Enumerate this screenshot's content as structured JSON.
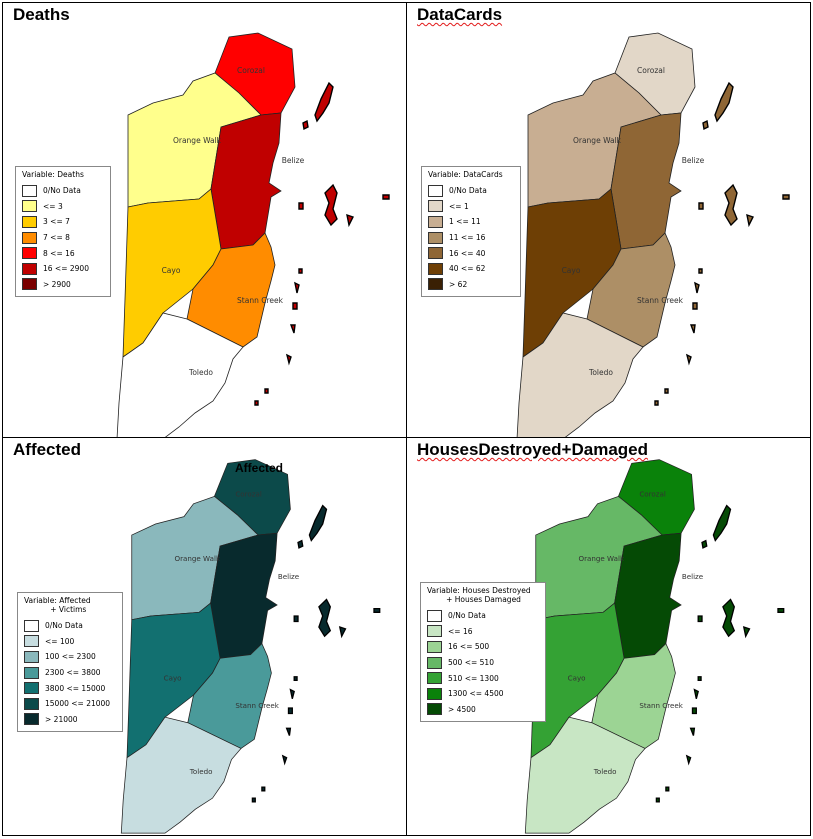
{
  "panels": [
    {
      "title": "Deaths",
      "title_squiggle": false,
      "map_title": "",
      "legend_title": "Variable: Deaths",
      "legend": [
        {
          "label": "0/No Data",
          "color": "#ffffff"
        },
        {
          "label": "<= 3",
          "color": "#ffff8c"
        },
        {
          "label": "3 <= 7",
          "color": "#ffcc00"
        },
        {
          "label": "7 <= 8",
          "color": "#ff8c00"
        },
        {
          "label": "8 <= 16",
          "color": "#ff0000"
        },
        {
          "label": "16 <= 2900",
          "color": "#c00000"
        },
        {
          "label": "> 2900",
          "color": "#7a0000"
        }
      ],
      "district_class": {
        "Corozal": 4,
        "Orange Walk": 1,
        "Belize": 5,
        "Cayo": 2,
        "Stann Creek": 3,
        "Toledo": 0
      }
    },
    {
      "title": "DataCards",
      "title_squiggle": true,
      "map_title": "",
      "legend_title": "Variable: DataCards",
      "legend": [
        {
          "label": "0/No Data",
          "color": "#ffffff"
        },
        {
          "label": "<= 1",
          "color": "#e2d7c8"
        },
        {
          "label": "1 <= 11",
          "color": "#c8ae92"
        },
        {
          "label": "11 <= 16",
          "color": "#ad8f66"
        },
        {
          "label": "16 <= 40",
          "color": "#8f6635"
        },
        {
          "label": "40 <= 62",
          "color": "#6e3f05"
        },
        {
          "label": "> 62",
          "color": "#3a2004"
        }
      ],
      "district_class": {
        "Corozal": 1,
        "Orange Walk": 2,
        "Belize": 4,
        "Cayo": 5,
        "Stann Creek": 3,
        "Toledo": 1
      }
    },
    {
      "title": "Affected",
      "title_squiggle": false,
      "map_title": "Affected",
      "legend_title": "Variable: Affected\n           + Victims",
      "legend": [
        {
          "label": "0/No Data",
          "color": "#ffffff"
        },
        {
          "label": "<= 100",
          "color": "#c7dde0"
        },
        {
          "label": "100 <= 2300",
          "color": "#8ab8bc"
        },
        {
          "label": "2300 <= 3800",
          "color": "#4a9a9a"
        },
        {
          "label": "3800 <= 15000",
          "color": "#127070"
        },
        {
          "label": "15000 <= 21000",
          "color": "#0c4a4a"
        },
        {
          "label": "> 21000",
          "color": "#082a2d"
        }
      ],
      "district_class": {
        "Corozal": 5,
        "Orange Walk": 2,
        "Belize": 6,
        "Cayo": 4,
        "Stann Creek": 3,
        "Toledo": 1
      }
    },
    {
      "title": "HousesDestroyed+Damaged",
      "title_squiggle": true,
      "map_title": "",
      "legend_title": "Variable: Houses Destroyed\n        + Houses Damaged",
      "legend": [
        {
          "label": "0/No Data",
          "color": "#ffffff"
        },
        {
          "label": "<= 16",
          "color": "#c8e6c4"
        },
        {
          "label": "16 <= 500",
          "color": "#9cd494"
        },
        {
          "label": "500 <= 510",
          "color": "#66b866"
        },
        {
          "label": "510 <= 1300",
          "color": "#34a234"
        },
        {
          "label": "1300 <= 4500",
          "color": "#0a820a"
        },
        {
          "label": "> 4500",
          "color": "#054a05"
        }
      ],
      "district_class": {
        "Corozal": 5,
        "Orange Walk": 3,
        "Belize": 6,
        "Cayo": 4,
        "Stann Creek": 2,
        "Toledo": 1
      }
    }
  ],
  "districts": [
    "Corozal",
    "Orange Walk",
    "Belize",
    "Cayo",
    "Stann Creek",
    "Toledo"
  ]
}
